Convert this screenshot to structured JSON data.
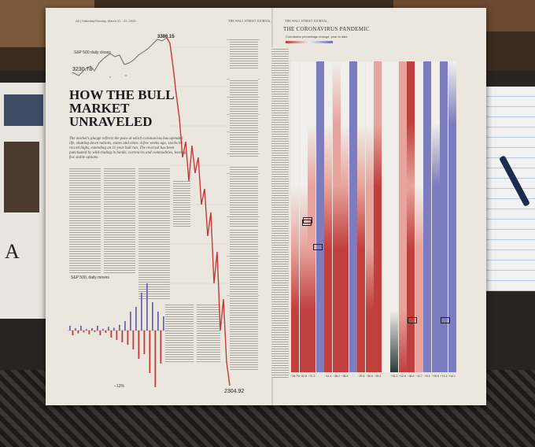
{
  "header": {
    "page_line": "A6 | Saturday/Sunday, March 21 - 22, 2020",
    "masthead": "THE WALL STREET JOURNAL.",
    "masthead2": "THE WALL STREET JOURNAL.",
    "section": "THE CORONAVIRUS PANDEMIC"
  },
  "article": {
    "headline": "HOW THE BULL MARKET UNRAVELED",
    "deck": "The market's plunge reflects the pace at which coronavirus has upended life, shutting down nations, states and cities. A few weeks ago, stocks hit record highs, extending an 11-year bull run. The reversal has been punctuated by wild trading in bonds, currencies and commodities, leaving few stable options."
  },
  "main_chart": {
    "title": "S&P 500 daily closes",
    "low_label": "3230.78",
    "high_label": "3386.15",
    "end_label": "2304.92"
  },
  "daily_chart": {
    "title": "S&P 500, daily moves",
    "min_label": "−12%"
  },
  "heatmap": {
    "legend_title": "Cumulative percentage change, year to date",
    "colors": {
      "red": "#c0403f",
      "pink": "#e8a49c",
      "white": "#f1efec",
      "blue": "#7c7cc0",
      "dark": "#2b3a36"
    },
    "bottom_values": [
      "−28.7%",
      "−32.8",
      "−37.3",
      "",
      "−14.4",
      "−38.2",
      "−38.6",
      "",
      "−29.6",
      "−30.6",
      "−26.4",
      "",
      "+31.2",
      "+12.6",
      "−38.8",
      "−12.7",
      "+8.3",
      "+15.6",
      "+13.1",
      "+14.1"
    ]
  }
}
